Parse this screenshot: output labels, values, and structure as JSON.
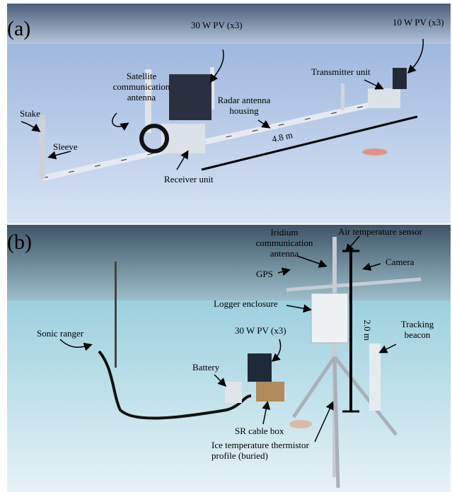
{
  "panels": [
    {
      "label": "(a)",
      "annotations": [
        {
          "lines": [
            "30 W PV (x3)"
          ]
        },
        {
          "lines": [
            "10 W PV (x3)"
          ]
        },
        {
          "lines": [
            "Satellite",
            "communication",
            "antenna"
          ]
        },
        {
          "lines": [
            "Transmitter unit"
          ]
        },
        {
          "lines": [
            "Radar antenna",
            "housing"
          ]
        },
        {
          "lines": [
            "Stake"
          ]
        },
        {
          "lines": [
            "Sleeve"
          ]
        },
        {
          "lines": [
            "Receiver unit"
          ]
        },
        {
          "lines": [
            "4.8 m"
          ]
        }
      ]
    },
    {
      "label": "(b)",
      "annotations": [
        {
          "lines": [
            "Iridium",
            "communication",
            "antenna"
          ]
        },
        {
          "lines": [
            "Air temperature sensor"
          ]
        },
        {
          "lines": [
            "GPS"
          ]
        },
        {
          "lines": [
            "Camera"
          ]
        },
        {
          "lines": [
            "Logger enclosure"
          ]
        },
        {
          "lines": [
            "Tracking",
            "beacon"
          ]
        },
        {
          "lines": [
            "Sonic ranger"
          ]
        },
        {
          "lines": [
            "30 W PV (x3)"
          ]
        },
        {
          "lines": [
            "2.0 m"
          ]
        },
        {
          "lines": [
            "Battery"
          ]
        },
        {
          "lines": [
            "SR cable box"
          ]
        },
        {
          "lines": [
            "Ice temperature thermistor",
            "profile (buried)"
          ]
        }
      ]
    }
  ]
}
